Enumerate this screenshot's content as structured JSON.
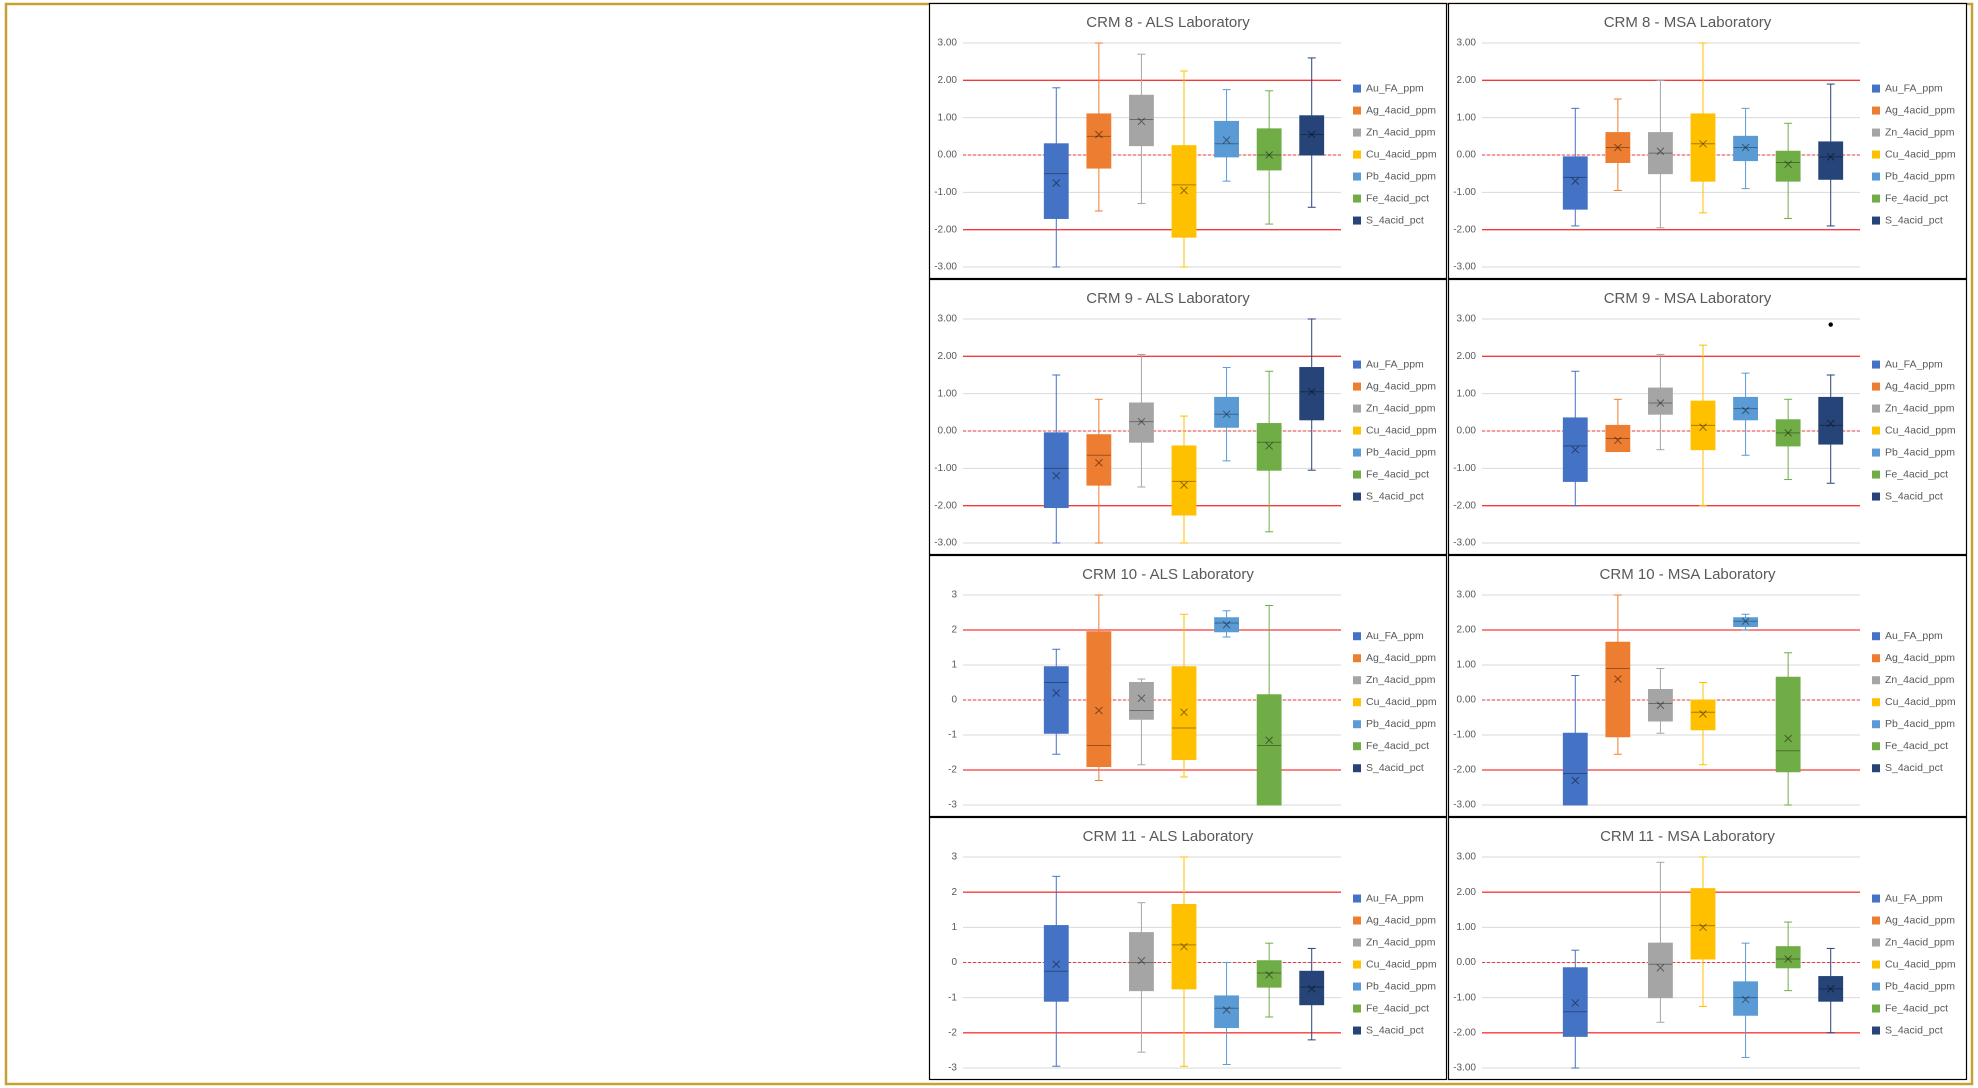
{
  "chart_data": [
    {
      "type": "box",
      "title": "CRM 8 - ALS Laboratory",
      "ylim": [
        -3,
        3
      ],
      "yticks": [
        {
          "value": -3,
          "label": "-3.00"
        },
        {
          "value": -2,
          "label": "-2.00"
        },
        {
          "value": -1,
          "label": "-1.00"
        },
        {
          "value": 0,
          "label": "0.00"
        },
        {
          "value": 1,
          "label": "1.00"
        },
        {
          "value": 2,
          "label": "2.00"
        },
        {
          "value": 3,
          "label": "3.00"
        }
      ],
      "grid": true,
      "limit_lines": [
        -2,
        2
      ],
      "center_line": 0,
      "line_color": "#ff0000",
      "legend": "right",
      "series": [
        {
          "name": "Au_FA_ppm",
          "color": "#4472c4",
          "min": -3,
          "q1": -1.7,
          "median": -0.5,
          "q3": 0.3,
          "max": 1.8,
          "mean": -0.75
        },
        {
          "name": "Ag_4acid_ppm",
          "color": "#ed7d31",
          "min": -1.5,
          "q1": -0.35,
          "median": 0.5,
          "q3": 1.1,
          "max": 3,
          "mean": 0.55
        },
        {
          "name": "Zn_4acid_ppm",
          "color": "#a5a5a5",
          "min": -1.3,
          "q1": 0.25,
          "median": 0.95,
          "q3": 1.6,
          "max": 2.7,
          "mean": 0.9
        },
        {
          "name": "Cu_4acid_ppm",
          "color": "#ffc000",
          "min": -3,
          "q1": -2.2,
          "median": -0.8,
          "q3": 0.25,
          "max": 2.25,
          "mean": -0.95
        },
        {
          "name": "Pb_4acid_ppm",
          "color": "#5b9bd5",
          "min": -0.7,
          "q1": -0.05,
          "median": 0.3,
          "q3": 0.9,
          "max": 1.75,
          "mean": 0.4
        },
        {
          "name": "Fe_4acid_pct",
          "color": "#70ad47",
          "min": -1.85,
          "q1": -0.4,
          "median": 0,
          "q3": 0.7,
          "max": 1.72,
          "mean": 0
        },
        {
          "name": "S_4acid_pct",
          "color": "#264478",
          "min": -1.4,
          "q1": 0,
          "median": 0.55,
          "q3": 1.05,
          "max": 2.6,
          "mean": 0.55
        }
      ]
    },
    {
      "type": "box",
      "title": "CRM 8 - MSA Laboratory",
      "ylim": [
        -3,
        3
      ],
      "yticks": [
        {
          "value": -3,
          "label": "-3.00"
        },
        {
          "value": -2,
          "label": "-2.00"
        },
        {
          "value": -1,
          "label": "-1.00"
        },
        {
          "value": 0,
          "label": "0.00"
        },
        {
          "value": 1,
          "label": "1.00"
        },
        {
          "value": 2,
          "label": "2.00"
        },
        {
          "value": 3,
          "label": "3.00"
        }
      ],
      "grid": true,
      "limit_lines": [
        -2,
        2
      ],
      "center_line": 0,
      "line_color": "#ff0000",
      "legend": "right",
      "series": [
        {
          "name": "Au_FA_ppm",
          "color": "#4472c4",
          "min": -1.9,
          "q1": -1.45,
          "median": -0.6,
          "q3": -0.05,
          "max": 1.25,
          "mean": -0.7
        },
        {
          "name": "Ag_4acid_ppm",
          "color": "#ed7d31",
          "min": -0.95,
          "q1": -0.2,
          "median": 0.2,
          "q3": 0.6,
          "max": 1.5,
          "mean": 0.2
        },
        {
          "name": "Zn_4acid_ppm",
          "color": "#a5a5a5",
          "min": -1.95,
          "q1": -0.5,
          "median": 0.05,
          "q3": 0.6,
          "max": 2,
          "mean": 0.1
        },
        {
          "name": "Cu_4acid_ppm",
          "color": "#ffc000",
          "min": -1.55,
          "q1": -0.7,
          "median": 0.3,
          "q3": 1.1,
          "max": 3,
          "mean": 0.3
        },
        {
          "name": "Pb_4acid_ppm",
          "color": "#5b9bd5",
          "min": -0.9,
          "q1": -0.15,
          "median": 0.2,
          "q3": 0.5,
          "max": 1.25,
          "mean": 0.2
        },
        {
          "name": "Fe_4acid_pct",
          "color": "#70ad47",
          "min": -1.7,
          "q1": -0.7,
          "median": -0.2,
          "q3": 0.1,
          "max": 0.85,
          "mean": -0.25
        },
        {
          "name": "S_4acid_pct",
          "color": "#264478",
          "min": -1.9,
          "q1": -0.65,
          "median": -0.05,
          "q3": 0.35,
          "max": 1.9,
          "mean": -0.05
        }
      ]
    },
    {
      "type": "box",
      "title": "CRM 9 - ALS Laboratory",
      "ylim": [
        -3,
        3
      ],
      "yticks": [
        {
          "value": -3,
          "label": "-3.00"
        },
        {
          "value": -2,
          "label": "-2.00"
        },
        {
          "value": -1,
          "label": "-1.00"
        },
        {
          "value": 0,
          "label": "0.00"
        },
        {
          "value": 1,
          "label": "1.00"
        },
        {
          "value": 2,
          "label": "2.00"
        },
        {
          "value": 3,
          "label": "3.00"
        }
      ],
      "grid": true,
      "limit_lines": [
        -2,
        2
      ],
      "center_line": 0,
      "line_color": "#ff0000",
      "legend": "right",
      "series": [
        {
          "name": "Au_FA_ppm",
          "color": "#4472c4",
          "min": -3,
          "q1": -2.05,
          "median": -1,
          "q3": -0.05,
          "max": 1.5,
          "mean": -1.2
        },
        {
          "name": "Ag_4acid_ppm",
          "color": "#ed7d31",
          "min": -3,
          "q1": -1.45,
          "median": -0.65,
          "q3": -0.1,
          "max": 0.85,
          "mean": -0.85
        },
        {
          "name": "Zn_4acid_ppm",
          "color": "#a5a5a5",
          "min": -1.5,
          "q1": -0.3,
          "median": 0.25,
          "q3": 0.75,
          "max": 2.05,
          "mean": 0.25
        },
        {
          "name": "Cu_4acid_ppm",
          "color": "#ffc000",
          "min": -3,
          "q1": -2.25,
          "median": -1.35,
          "q3": -0.4,
          "max": 0.4,
          "mean": -1.45
        },
        {
          "name": "Pb_4acid_ppm",
          "color": "#5b9bd5",
          "min": -0.8,
          "q1": 0.1,
          "median": 0.45,
          "q3": 0.9,
          "max": 1.7,
          "mean": 0.45
        },
        {
          "name": "Fe_4acid_pct",
          "color": "#70ad47",
          "min": -2.7,
          "q1": -1.05,
          "median": -0.3,
          "q3": 0.2,
          "max": 1.6,
          "mean": -0.4
        },
        {
          "name": "S_4acid_pct",
          "color": "#264478",
          "min": -1.05,
          "q1": 0.3,
          "median": 1.05,
          "q3": 1.7,
          "max": 3,
          "mean": 1.05
        }
      ]
    },
    {
      "type": "box",
      "title": "CRM 9 - MSA Laboratory",
      "ylim": [
        -3,
        3
      ],
      "yticks": [
        {
          "value": -3,
          "label": "-3.00"
        },
        {
          "value": -2,
          "label": "-2.00"
        },
        {
          "value": -1,
          "label": "-1.00"
        },
        {
          "value": 0,
          "label": "0.00"
        },
        {
          "value": 1,
          "label": "1.00"
        },
        {
          "value": 2,
          "label": "2.00"
        },
        {
          "value": 3,
          "label": "3.00"
        }
      ],
      "grid": true,
      "limit_lines": [
        -2,
        2
      ],
      "center_line": 0,
      "line_color": "#ff0000",
      "legend": "right",
      "series": [
        {
          "name": "Au_FA_ppm",
          "color": "#4472c4",
          "min": -2,
          "q1": -1.35,
          "median": -0.4,
          "q3": 0.35,
          "max": 1.6,
          "mean": -0.5
        },
        {
          "name": "Ag_4acid_ppm",
          "color": "#ed7d31",
          "min": -0.55,
          "q1": -0.55,
          "median": -0.2,
          "q3": 0.15,
          "max": 0.85,
          "mean": -0.25
        },
        {
          "name": "Zn_4acid_ppm",
          "color": "#a5a5a5",
          "min": -0.5,
          "q1": 0.45,
          "median": 0.75,
          "q3": 1.15,
          "max": 2.05,
          "mean": 0.75
        },
        {
          "name": "Cu_4acid_ppm",
          "color": "#ffc000",
          "min": -2,
          "q1": -0.5,
          "median": 0.15,
          "q3": 0.8,
          "max": 2.3,
          "mean": 0.1
        },
        {
          "name": "Pb_4acid_ppm",
          "color": "#5b9bd5",
          "min": -0.65,
          "q1": 0.3,
          "median": 0.6,
          "q3": 0.9,
          "max": 1.55,
          "mean": 0.55
        },
        {
          "name": "Fe_4acid_pct",
          "color": "#70ad47",
          "min": -1.3,
          "q1": -0.4,
          "median": -0.05,
          "q3": 0.3,
          "max": 0.85,
          "mean": -0.05
        },
        {
          "name": "S_4acid_pct",
          "color": "#264478",
          "min": -1.4,
          "q1": -0.35,
          "median": 0.15,
          "q3": 0.9,
          "max": 1.5,
          "mean": 0.2,
          "outliers": [
            2.85
          ]
        }
      ]
    },
    {
      "type": "box",
      "title": "CRM 10 - ALS Laboratory",
      "ylim": [
        -3,
        3
      ],
      "yticks": [
        -3,
        -2,
        -1,
        0,
        1,
        2,
        3
      ],
      "grid": true,
      "limit_lines": [
        -2,
        2
      ],
      "center_line": 0,
      "line_color": "#ff0000",
      "legend": "right",
      "series": [
        {
          "name": "Au_FA_ppm",
          "color": "#4472c4",
          "min": -1.55,
          "q1": -0.95,
          "median": 0.5,
          "q3": 0.95,
          "max": 1.45,
          "mean": 0.2
        },
        {
          "name": "Ag_4acid_ppm",
          "color": "#ed7d31",
          "min": -2.3,
          "q1": -1.9,
          "median": -1.3,
          "q3": 1.95,
          "max": 3,
          "mean": -0.3
        },
        {
          "name": "Zn_4acid_ppm",
          "color": "#a5a5a5",
          "min": -1.85,
          "q1": -0.55,
          "median": -0.3,
          "q3": 0.5,
          "max": 0.6,
          "mean": 0.05
        },
        {
          "name": "Cu_4acid_ppm",
          "color": "#ffc000",
          "min": -2.2,
          "q1": -1.7,
          "median": -0.8,
          "q3": 0.95,
          "max": 2.45,
          "mean": -0.35
        },
        {
          "name": "Pb_4acid_ppm",
          "color": "#5b9bd5",
          "min": 1.8,
          "q1": 1.95,
          "median": 2.2,
          "q3": 2.35,
          "max": 2.55,
          "mean": 2.15
        },
        {
          "name": "Fe_4acid_pct",
          "color": "#70ad47",
          "min": -3,
          "q1": -3,
          "median": -1.3,
          "q3": 0.15,
          "max": 2.7,
          "mean": -1.15
        },
        {
          "name": "S_4acid_pct",
          "color": "#264478",
          "min": null,
          "q1": null,
          "median": null,
          "q3": null,
          "max": null,
          "mean": null
        }
      ]
    },
    {
      "type": "box",
      "title": "CRM 10 - MSA Laboratory",
      "ylim": [
        -3,
        3
      ],
      "yticks": [
        {
          "value": -3,
          "label": "-3.00"
        },
        {
          "value": -2,
          "label": "-2.00"
        },
        {
          "value": -1,
          "label": "-1.00"
        },
        {
          "value": 0,
          "label": "0.00"
        },
        {
          "value": 1,
          "label": "1.00"
        },
        {
          "value": 2,
          "label": "2.00"
        },
        {
          "value": 3,
          "label": "3.00"
        }
      ],
      "grid": true,
      "limit_lines": [
        -2,
        2
      ],
      "center_line": 0,
      "line_color": "#ff0000",
      "legend": "right",
      "series": [
        {
          "name": "Au_FA_ppm",
          "color": "#4472c4",
          "min": -3,
          "q1": -3,
          "median": -2.1,
          "q3": -0.95,
          "max": 0.7,
          "mean": -2.3
        },
        {
          "name": "Ag_4acid_ppm",
          "color": "#ed7d31",
          "min": -1.55,
          "q1": -1.05,
          "median": 0.9,
          "q3": 1.65,
          "max": 3,
          "mean": 0.6
        },
        {
          "name": "Zn_4acid_ppm",
          "color": "#a5a5a5",
          "min": -0.95,
          "q1": -0.6,
          "median": -0.1,
          "q3": 0.3,
          "max": 0.9,
          "mean": -0.15
        },
        {
          "name": "Cu_4acid_ppm",
          "color": "#ffc000",
          "min": -1.85,
          "q1": -0.85,
          "median": -0.35,
          "q3": 0,
          "max": 0.5,
          "mean": -0.4
        },
        {
          "name": "Pb_4acid_ppm",
          "color": "#5b9bd5",
          "min": 2,
          "q1": 2.1,
          "median": 2.25,
          "q3": 2.35,
          "max": 2.45,
          "mean": 2.25
        },
        {
          "name": "Fe_4acid_pct",
          "color": "#70ad47",
          "min": -3,
          "q1": -2.05,
          "median": -1.45,
          "q3": 0.65,
          "max": 1.35,
          "mean": -1.1
        },
        {
          "name": "S_4acid_pct",
          "color": "#264478",
          "min": null,
          "q1": null,
          "median": null,
          "q3": null,
          "max": null,
          "mean": null
        }
      ]
    },
    {
      "type": "box",
      "title": "CRM 11 - ALS Laboratory",
      "ylim": [
        -3,
        3
      ],
      "yticks": [
        -3,
        -2,
        -1,
        0,
        1,
        2,
        3
      ],
      "grid": true,
      "limit_lines": [
        -2,
        2
      ],
      "center_line": 0,
      "line_color": "#ff0000",
      "legend": "right",
      "series": [
        {
          "name": "Au_FA_ppm",
          "color": "#4472c4",
          "min": -2.95,
          "q1": -1.1,
          "median": -0.25,
          "q3": 1.05,
          "max": 2.45,
          "mean": -0.05
        },
        {
          "name": "Ag_4acid_ppm",
          "color": "#ed7d31",
          "min": null,
          "q1": null,
          "median": null,
          "q3": null,
          "max": null,
          "mean": null
        },
        {
          "name": "Zn_4acid_ppm",
          "color": "#a5a5a5",
          "min": -2.55,
          "q1": -0.8,
          "median": 0,
          "q3": 0.85,
          "max": 1.7,
          "mean": 0.05
        },
        {
          "name": "Cu_4acid_ppm",
          "color": "#ffc000",
          "min": -2.95,
          "q1": -0.75,
          "median": 0.5,
          "q3": 1.65,
          "max": 3,
          "mean": 0.45
        },
        {
          "name": "Pb_4acid_ppm",
          "color": "#5b9bd5",
          "min": -2.9,
          "q1": -1.85,
          "median": -1.3,
          "q3": -0.95,
          "max": 0,
          "mean": -1.35
        },
        {
          "name": "Fe_4acid_pct",
          "color": "#70ad47",
          "min": -1.55,
          "q1": -0.7,
          "median": -0.3,
          "q3": 0.05,
          "max": 0.55,
          "mean": -0.35
        },
        {
          "name": "S_4acid_pct",
          "color": "#264478",
          "min": -2.2,
          "q1": -1.2,
          "median": -0.7,
          "q3": -0.25,
          "max": 0.4,
          "mean": -0.75
        }
      ]
    },
    {
      "type": "box",
      "title": "CRM 11 - MSA Laboratory",
      "ylim": [
        -3,
        3
      ],
      "yticks": [
        {
          "value": -3,
          "label": "-3.00"
        },
        {
          "value": -2,
          "label": "-2.00"
        },
        {
          "value": -1,
          "label": "-1.00"
        },
        {
          "value": 0,
          "label": "0.00"
        },
        {
          "value": 1,
          "label": "1.00"
        },
        {
          "value": 2,
          "label": "2.00"
        },
        {
          "value": 3,
          "label": "3.00"
        }
      ],
      "grid": true,
      "limit_lines": [
        -2,
        2
      ],
      "center_line": 0,
      "line_color": "#ff0000",
      "legend": "right",
      "series": [
        {
          "name": "Au_FA_ppm",
          "color": "#4472c4",
          "min": -3,
          "q1": -2.1,
          "median": -1.4,
          "q3": -0.15,
          "max": 0.35,
          "mean": -1.15
        },
        {
          "name": "Ag_4acid_ppm",
          "color": "#ed7d31",
          "min": null,
          "q1": null,
          "median": null,
          "q3": null,
          "max": null,
          "mean": null
        },
        {
          "name": "Zn_4acid_ppm",
          "color": "#a5a5a5",
          "min": -1.7,
          "q1": -1,
          "median": -0.05,
          "q3": 0.55,
          "max": 2.85,
          "mean": -0.15
        },
        {
          "name": "Cu_4acid_ppm",
          "color": "#ffc000",
          "min": -1.25,
          "q1": 0.1,
          "median": 1.05,
          "q3": 2.1,
          "max": 3,
          "mean": 1
        },
        {
          "name": "Pb_4acid_ppm",
          "color": "#5b9bd5",
          "min": -2.7,
          "q1": -1.5,
          "median": -1,
          "q3": -0.55,
          "max": 0.55,
          "mean": -1.05
        },
        {
          "name": "Fe_4acid_pct",
          "color": "#70ad47",
          "min": -0.8,
          "q1": -0.15,
          "median": 0.1,
          "q3": 0.45,
          "max": 1.15,
          "mean": 0.1
        },
        {
          "name": "S_4acid_pct",
          "color": "#264478",
          "min": -2,
          "q1": -1.1,
          "median": -0.75,
          "q3": -0.4,
          "max": 0.4,
          "mean": -0.75
        }
      ]
    }
  ]
}
